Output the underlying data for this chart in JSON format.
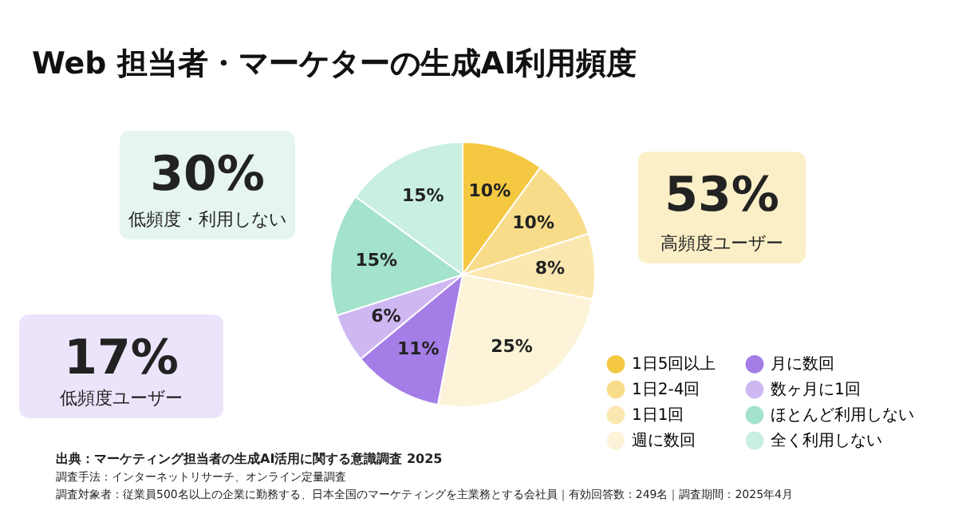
{
  "chart_data": {
    "type": "pie",
    "title": "Web 担当者・マーケターの生成AI利用頻度",
    "categories": [
      "1日5回以上",
      "1日2-4回",
      "1日1回",
      "週に数回",
      "月に数回",
      "数ヶ月に1回",
      "ほとんど利用しない",
      "全く利用しない"
    ],
    "values": [
      10,
      10,
      8,
      25,
      11,
      6,
      15,
      15
    ],
    "value_labels": [
      "10%",
      "10%",
      "8%",
      "25%",
      "11%",
      "6%",
      "15%",
      "15%"
    ],
    "colors": [
      "#f5c842",
      "#f8dc8a",
      "#fae8b0",
      "#fcf3d8",
      "#a47de6",
      "#cfb8f2",
      "#a3e2cb",
      "#c8efe0"
    ],
    "legend": "bottom right",
    "annotations": [
      "30%",
      "低頻度・利用しない",
      "17%",
      "低頻度ユーザー",
      "53%",
      "高頻度ユーザー",
      "出典：マーケティング担当者の生成AI活用に関する意識調査 2025",
      "調査手法：インターネットリサーチ、オンライン定量調査",
      "調査対象者：従業員500名以上の企業に勤務する、日本全国のマーケティングを主業務とする会社員｜有効回答数：249名｜調査期間：2025年4月"
    ]
  }
}
